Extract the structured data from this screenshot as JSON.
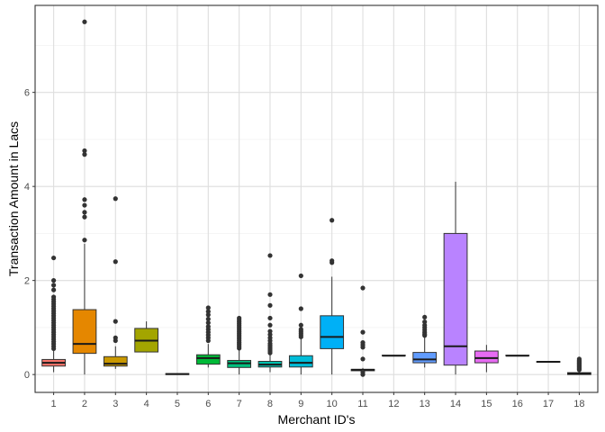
{
  "chart_data": {
    "type": "boxplot",
    "xlabel": "Merchant ID's",
    "ylabel": "Transaction Amount in Lacs",
    "ylim": [
      -0.38,
      7.85
    ],
    "yticks": [
      0,
      2,
      4,
      6
    ],
    "grid": true,
    "legend": "none",
    "categories": [
      "1",
      "2",
      "3",
      "4",
      "5",
      "6",
      "7",
      "8",
      "9",
      "10",
      "11",
      "12",
      "13",
      "14",
      "15",
      "16",
      "17",
      "18"
    ],
    "boxes": [
      {
        "category": "1",
        "color": "#F8766D",
        "min": 0.05,
        "q1": 0.18,
        "median": 0.25,
        "q3": 0.32,
        "max": 0.5,
        "outliers": [
          0.55,
          0.6,
          0.65,
          0.7,
          0.75,
          0.8,
          0.85,
          0.9,
          0.95,
          1.0,
          1.05,
          1.1,
          1.15,
          1.2,
          1.25,
          1.3,
          1.35,
          1.4,
          1.45,
          1.5,
          1.55,
          1.6,
          1.65,
          1.8,
          1.9,
          2.0,
          2.48
        ]
      },
      {
        "category": "2",
        "color": "#E58700",
        "min": 0.0,
        "q1": 0.45,
        "median": 0.65,
        "q3": 1.38,
        "max": 2.78,
        "outliers": [
          2.86,
          3.35,
          3.45,
          3.6,
          3.72,
          4.68,
          4.76,
          7.5
        ]
      },
      {
        "category": "3",
        "color": "#C99800",
        "min": 0.12,
        "q1": 0.18,
        "median": 0.23,
        "q3": 0.38,
        "max": 0.6,
        "outliers": [
          0.72,
          0.78,
          1.13,
          2.4,
          3.74
        ]
      },
      {
        "category": "4",
        "color": "#A3A500",
        "min": 0.48,
        "q1": 0.48,
        "median": 0.72,
        "q3": 0.98,
        "max": 1.13,
        "outliers": []
      },
      {
        "category": "5",
        "color": "#6BB100",
        "min": 0.0,
        "q1": 0.0,
        "median": 0.01,
        "q3": 0.02,
        "max": 0.02,
        "outliers": []
      },
      {
        "category": "6",
        "color": "#00BA38",
        "min": 0.15,
        "q1": 0.22,
        "median": 0.35,
        "q3": 0.42,
        "max": 0.65,
        "outliers": [
          0.72,
          0.78,
          0.84,
          0.9,
          0.96,
          1.02,
          1.1,
          1.18,
          1.27,
          1.34,
          1.42
        ]
      },
      {
        "category": "7",
        "color": "#00BF7D",
        "min": 0.0,
        "q1": 0.15,
        "median": 0.24,
        "q3": 0.3,
        "max": 0.52,
        "outliers": [
          0.56,
          0.6,
          0.64,
          0.68,
          0.72,
          0.76,
          0.8,
          0.84,
          0.88,
          0.92,
          0.96,
          1.0,
          1.04,
          1.08,
          1.12,
          1.16,
          1.2
        ]
      },
      {
        "category": "8",
        "color": "#00C0AF",
        "min": 0.05,
        "q1": 0.16,
        "median": 0.21,
        "q3": 0.28,
        "max": 0.42,
        "outliers": [
          0.46,
          0.5,
          0.54,
          0.58,
          0.62,
          0.66,
          0.72,
          0.78,
          0.85,
          0.92,
          1.05,
          1.2,
          1.47,
          1.7,
          2.53
        ]
      },
      {
        "category": "9",
        "color": "#00BCD8",
        "min": 0.0,
        "q1": 0.16,
        "median": 0.25,
        "q3": 0.4,
        "max": 0.75,
        "outliers": [
          0.8,
          0.84,
          0.88,
          0.92,
          0.96,
          1.05,
          1.4,
          2.1
        ]
      },
      {
        "category": "10",
        "color": "#00B0F6",
        "min": 0.0,
        "q1": 0.55,
        "median": 0.8,
        "q3": 1.25,
        "max": 2.08,
        "outliers": [
          2.38,
          2.42,
          3.28
        ]
      },
      {
        "category": "11",
        "color": "#619CFF",
        "min": 0.05,
        "q1": 0.08,
        "median": 0.1,
        "q3": 0.11,
        "max": 0.14,
        "outliers": [
          0.0,
          0.05,
          0.33,
          0.58,
          0.63,
          0.68,
          0.9,
          1.84
        ]
      },
      {
        "category": "12",
        "color": "#B983FF",
        "min": 0.4,
        "q1": 0.4,
        "median": 0.4,
        "q3": 0.41,
        "max": 0.41,
        "outliers": []
      },
      {
        "category": "13",
        "color": "#619CFF",
        "min": 0.15,
        "q1": 0.25,
        "median": 0.32,
        "q3": 0.47,
        "max": 0.8,
        "outliers": [
          0.83,
          0.86,
          0.9,
          0.95,
          1.0,
          1.05,
          1.12,
          1.22
        ]
      },
      {
        "category": "14",
        "color": "#B983FF",
        "min": 0.0,
        "q1": 0.2,
        "median": 0.6,
        "q3": 3.0,
        "max": 4.1,
        "outliers": []
      },
      {
        "category": "15",
        "color": "#E76BF3",
        "min": 0.05,
        "q1": 0.25,
        "median": 0.35,
        "q3": 0.5,
        "max": 0.63,
        "outliers": []
      },
      {
        "category": "16",
        "color": "#FD61D1",
        "min": 0.4,
        "q1": 0.4,
        "median": 0.4,
        "q3": 0.41,
        "max": 0.41,
        "outliers": []
      },
      {
        "category": "17",
        "color": "#FF67A4",
        "min": 0.26,
        "q1": 0.26,
        "median": 0.27,
        "q3": 0.28,
        "max": 0.28,
        "outliers": []
      },
      {
        "category": "18",
        "color": "#FF6C91",
        "min": 0.0,
        "q1": 0.0,
        "median": 0.02,
        "q3": 0.04,
        "max": 0.08,
        "outliers": [
          0.1,
          0.12,
          0.14,
          0.16,
          0.18,
          0.2,
          0.22,
          0.24,
          0.26,
          0.28,
          0.3,
          0.33
        ]
      }
    ]
  }
}
